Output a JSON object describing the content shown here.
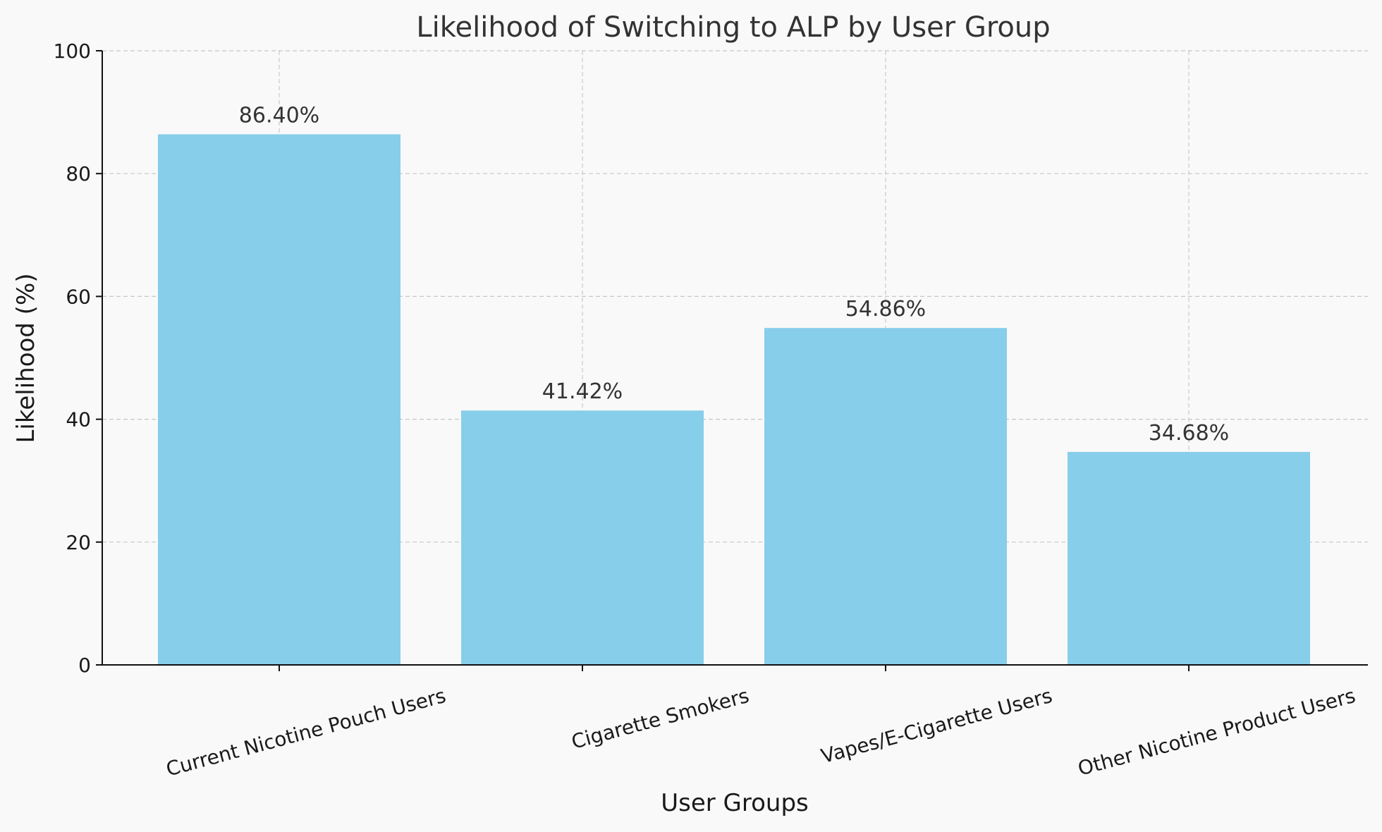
{
  "chart_data": {
    "type": "bar",
    "title": "Likelihood of Switching to ALP by User Group",
    "xlabel": "User Groups",
    "ylabel": "Likelihood (%)",
    "categories": [
      "Current Nicotine Pouch Users",
      "Cigarette Smokers",
      "Vapes/E-Cigarette Users",
      "Other Nicotine Product Users"
    ],
    "values": [
      86.4,
      41.42,
      54.86,
      34.68
    ],
    "data_labels": [
      "86.40%",
      "41.42%",
      "54.86%",
      "34.68%"
    ],
    "ylim": [
      0,
      100
    ],
    "yticks": [
      0,
      20,
      40,
      60,
      80,
      100
    ],
    "ytick_labels": [
      "0",
      "20",
      "40",
      "60",
      "80",
      "100"
    ],
    "grid": true,
    "colors": {
      "bar": "#87ceeb",
      "background": "#f9f9f9"
    }
  }
}
